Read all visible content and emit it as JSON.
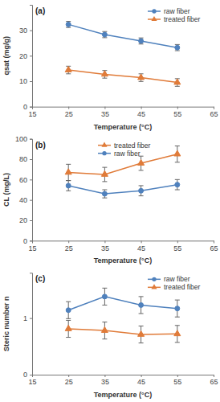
{
  "chart_data": [
    {
      "type": "line",
      "annotation": "(a)",
      "x_label": "Temperature (°C)",
      "y_label": "qsat (mg/g)",
      "x": [
        25,
        35,
        45,
        55
      ],
      "xlim": [
        15,
        65
      ],
      "xticks": [
        15,
        25,
        35,
        45,
        55,
        65
      ],
      "ylim": [
        0,
        40
      ],
      "yticks": [
        0,
        10,
        20,
        30
      ],
      "legend": "upper right",
      "series": [
        {
          "name": "raw fiber",
          "color": "#4f81bd",
          "marker": "circle",
          "values": [
            32.3,
            28.3,
            25.8,
            23.2
          ],
          "errors": [
            1.2,
            1.2,
            1.2,
            1.2
          ]
        },
        {
          "name": "treated fiber",
          "color": "#e07b39",
          "marker": "triangle",
          "values": [
            14.4,
            12.7,
            11.4,
            9.5
          ],
          "errors": [
            1.5,
            1.5,
            1.5,
            1.5
          ]
        }
      ]
    },
    {
      "type": "line",
      "annotation": "(b)",
      "x_label": "Temperature (°C)",
      "y_label": "CL (mg/L)",
      "x": [
        25,
        35,
        45,
        55
      ],
      "xlim": [
        15,
        65
      ],
      "xticks": [
        15,
        25,
        35,
        45,
        55,
        65
      ],
      "ylim": [
        0,
        100
      ],
      "yticks": [
        0,
        20,
        40,
        60,
        80,
        100
      ],
      "legend": "upper center",
      "series": [
        {
          "name": "treated fiber",
          "color": "#e07b39",
          "marker": "triangle",
          "values": [
            67,
            65,
            76,
            85
          ],
          "errors": [
            8,
            7,
            7,
            8
          ]
        },
        {
          "name": "raw fiber",
          "color": "#4f81bd",
          "marker": "circle",
          "values": [
            54,
            46,
            49,
            55
          ],
          "errors": [
            5,
            4,
            5,
            5
          ]
        }
      ]
    },
    {
      "type": "line",
      "annotation": "(c)",
      "x_label": "Temperature (°C)",
      "y_label": "Steric number n",
      "x": [
        25,
        35,
        45,
        55
      ],
      "xlim": [
        15,
        65
      ],
      "xticks": [
        15,
        25,
        35,
        45,
        55,
        65
      ],
      "ylim": [
        0,
        1.8
      ],
      "yticks": [
        0,
        1
      ],
      "legend": "upper right",
      "series": [
        {
          "name": "raw fiber",
          "color": "#4f81bd",
          "marker": "circle",
          "values": [
            1.14,
            1.38,
            1.23,
            1.17
          ],
          "errors": [
            0.15,
            0.15,
            0.15,
            0.15
          ]
        },
        {
          "name": "treated fiber",
          "color": "#e07b39",
          "marker": "triangle",
          "values": [
            0.81,
            0.78,
            0.71,
            0.72
          ],
          "errors": [
            0.15,
            0.15,
            0.15,
            0.15
          ]
        }
      ]
    }
  ]
}
